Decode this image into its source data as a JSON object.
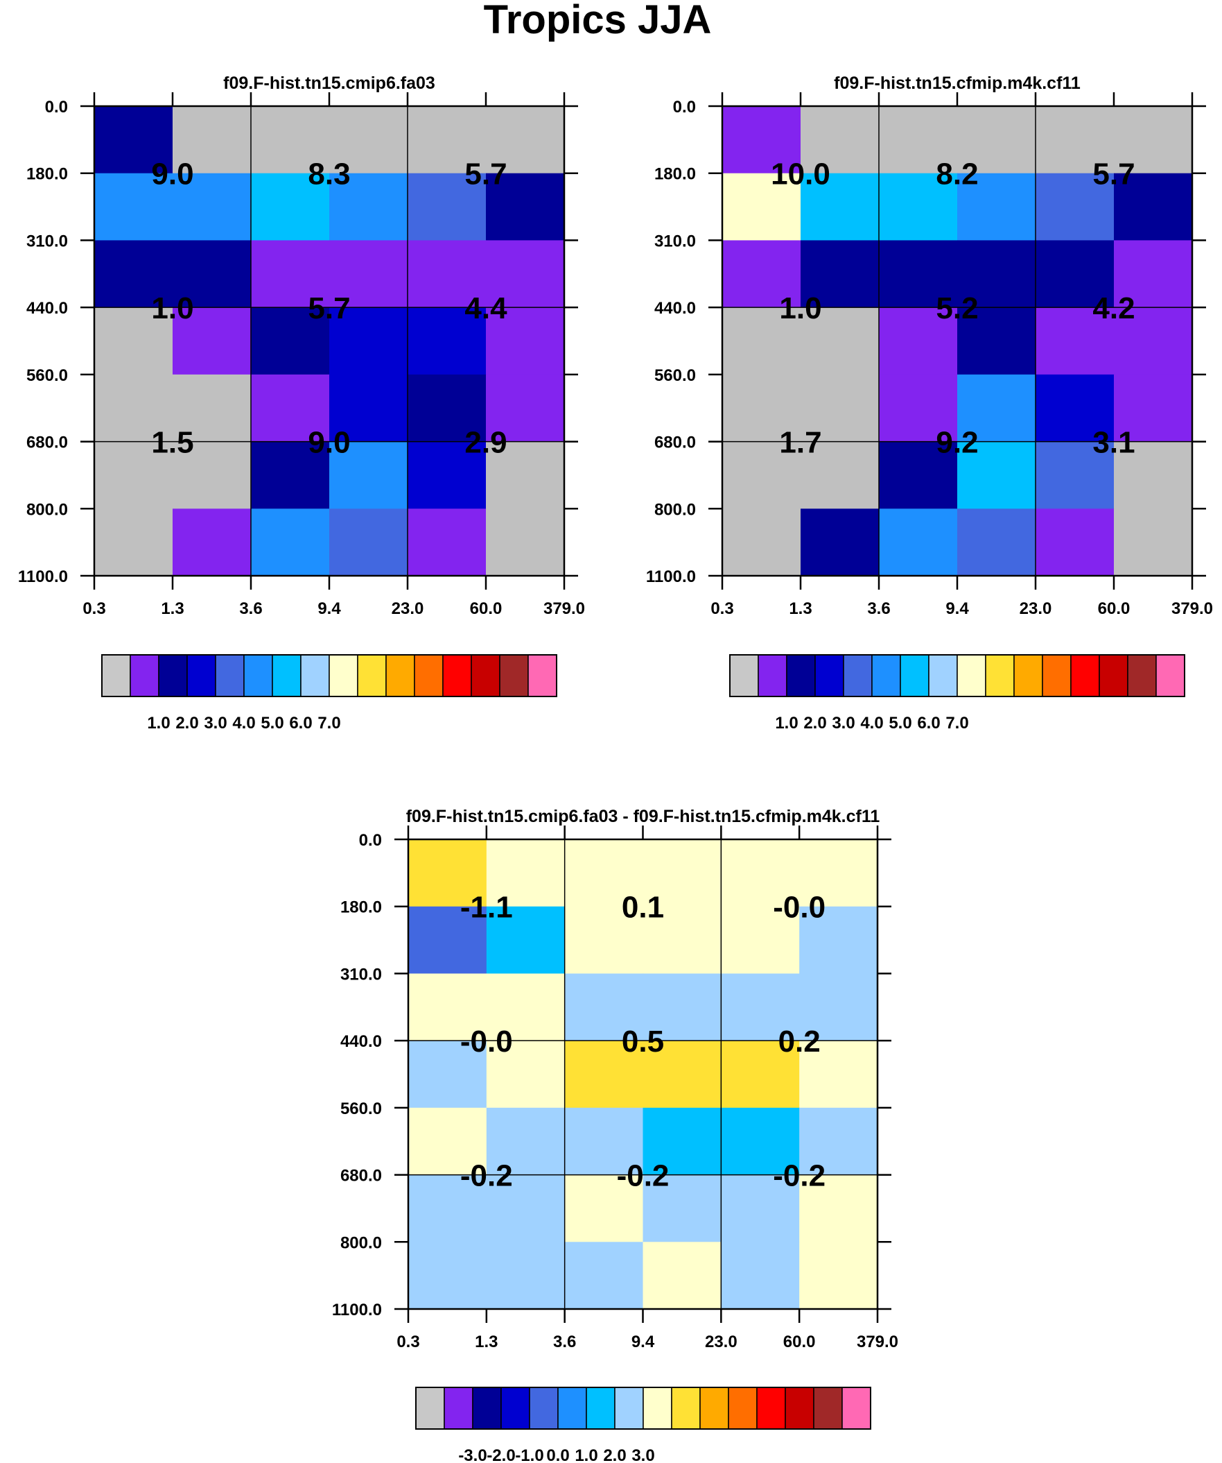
{
  "title": "Tropics JJA",
  "palette": {
    "c0": "#c8c8c8",
    "c1": "#8324ef",
    "c2": "#000096",
    "c3": "#0000d0",
    "c4": "#4268e0",
    "c5": "#1e90ff",
    "c6": "#00c0ff",
    "c7": "#a0d2ff",
    "c8": "#ffffcc",
    "c9": "#ffe135",
    "c10": "#ffaa00",
    "c11": "#ff6e00",
    "c12": "#ff0000",
    "c13": "#c80000",
    "c14": "#a02828",
    "c15": "#ff69b4",
    "missing": "#c0c0c0"
  },
  "chart_data": [
    {
      "type": "heatmap",
      "title": "f09.F-hist.tn15.cmip6.fa03",
      "x_ticks": [
        "0.3",
        "1.3",
        "3.6",
        "9.4",
        "23.0",
        "60.0",
        "379.0"
      ],
      "y_ticks": [
        "0.0",
        "180.0",
        "310.0",
        "440.0",
        "560.0",
        "680.0",
        "800.0",
        "1100.0"
      ],
      "cells": [
        [
          "c2",
          "missing",
          "missing",
          "missing",
          "missing",
          "missing"
        ],
        [
          "c5",
          "c5",
          "c6",
          "c5",
          "c4",
          "c2"
        ],
        [
          "c2",
          "c2",
          "c1",
          "c1",
          "c1",
          "c1"
        ],
        [
          "missing",
          "c1",
          "c2",
          "c3",
          "c3",
          "c1"
        ],
        [
          "missing",
          "missing",
          "c1",
          "c3",
          "c2",
          "c1"
        ],
        [
          "missing",
          "missing",
          "c2",
          "c5",
          "c3",
          "missing"
        ],
        [
          "missing",
          "c1",
          "c5",
          "c4",
          "c1",
          "missing"
        ]
      ],
      "box_values": [
        [
          "9.0",
          "8.3",
          "5.7"
        ],
        [
          "1.0",
          "5.7",
          "4.4"
        ],
        [
          "1.5",
          "9.0",
          "2.9"
        ]
      ],
      "colorbar": {
        "colors": [
          "c0",
          "c1",
          "c2",
          "c3",
          "c4",
          "c5",
          "c6",
          "c7",
          "c8",
          "c9",
          "c10",
          "c11",
          "c12",
          "c13",
          "c14",
          "c15"
        ],
        "labels": [
          "1.0",
          "2.0",
          "3.0",
          "4.0",
          "5.0",
          "6.0",
          "7.0"
        ]
      }
    },
    {
      "type": "heatmap",
      "title": "f09.F-hist.tn15.cfmip.m4k.cf11",
      "x_ticks": [
        "0.3",
        "1.3",
        "3.6",
        "9.4",
        "23.0",
        "60.0",
        "379.0"
      ],
      "y_ticks": [
        "0.0",
        "180.0",
        "310.0",
        "440.0",
        "560.0",
        "680.0",
        "800.0",
        "1100.0"
      ],
      "cells": [
        [
          "c1",
          "missing",
          "missing",
          "missing",
          "missing",
          "missing"
        ],
        [
          "c8",
          "c6",
          "c6",
          "c5",
          "c4",
          "c2"
        ],
        [
          "c1",
          "c2",
          "c2",
          "c2",
          "c2",
          "c1"
        ],
        [
          "missing",
          "missing",
          "c1",
          "c2",
          "c1",
          "c1"
        ],
        [
          "missing",
          "missing",
          "c1",
          "c5",
          "c3",
          "c1"
        ],
        [
          "missing",
          "missing",
          "c2",
          "c6",
          "c4",
          "missing"
        ],
        [
          "missing",
          "c2",
          "c5",
          "c4",
          "c1",
          "missing"
        ]
      ],
      "box_values": [
        [
          "10.0",
          "8.2",
          "5.7"
        ],
        [
          "1.0",
          "5.2",
          "4.2"
        ],
        [
          "1.7",
          "9.2",
          "3.1"
        ]
      ],
      "colorbar": {
        "colors": [
          "c0",
          "c1",
          "c2",
          "c3",
          "c4",
          "c5",
          "c6",
          "c7",
          "c8",
          "c9",
          "c10",
          "c11",
          "c12",
          "c13",
          "c14",
          "c15"
        ],
        "labels": [
          "1.0",
          "2.0",
          "3.0",
          "4.0",
          "5.0",
          "6.0",
          "7.0"
        ]
      }
    },
    {
      "type": "heatmap",
      "title": "f09.F-hist.tn15.cmip6.fa03 - f09.F-hist.tn15.cfmip.m4k.cf11",
      "x_ticks": [
        "0.3",
        "1.3",
        "3.6",
        "9.4",
        "23.0",
        "60.0",
        "379.0"
      ],
      "y_ticks": [
        "0.0",
        "180.0",
        "310.0",
        "440.0",
        "560.0",
        "680.0",
        "800.0",
        "1100.0"
      ],
      "cells": [
        [
          "c9",
          "c8",
          "c8",
          "c8",
          "c8",
          "c8"
        ],
        [
          "c4",
          "c6",
          "c8",
          "c8",
          "c8",
          "c7"
        ],
        [
          "c8",
          "c8",
          "c7",
          "c7",
          "c7",
          "c7"
        ],
        [
          "c7",
          "c8",
          "c9",
          "c9",
          "c9",
          "c8"
        ],
        [
          "c8",
          "c7",
          "c7",
          "c6",
          "c6",
          "c7"
        ],
        [
          "c7",
          "c7",
          "c8",
          "c7",
          "c7",
          "c8"
        ],
        [
          "c7",
          "c7",
          "c7",
          "c8",
          "c7",
          "c8"
        ]
      ],
      "box_values": [
        [
          "-1.1",
          "0.1",
          "-0.0"
        ],
        [
          "-0.0",
          "0.5",
          "0.2"
        ],
        [
          "-0.2",
          "-0.2",
          "-0.2"
        ]
      ],
      "colorbar": {
        "colors": [
          "c0",
          "c1",
          "c2",
          "c3",
          "c4",
          "c5",
          "c6",
          "c7",
          "c8",
          "c9",
          "c10",
          "c11",
          "c12",
          "c13",
          "c14",
          "c15"
        ],
        "labels": [
          "-3.0",
          "-2.0",
          "-1.0",
          "0.0",
          "1.0",
          "2.0",
          "3.0"
        ]
      }
    }
  ]
}
